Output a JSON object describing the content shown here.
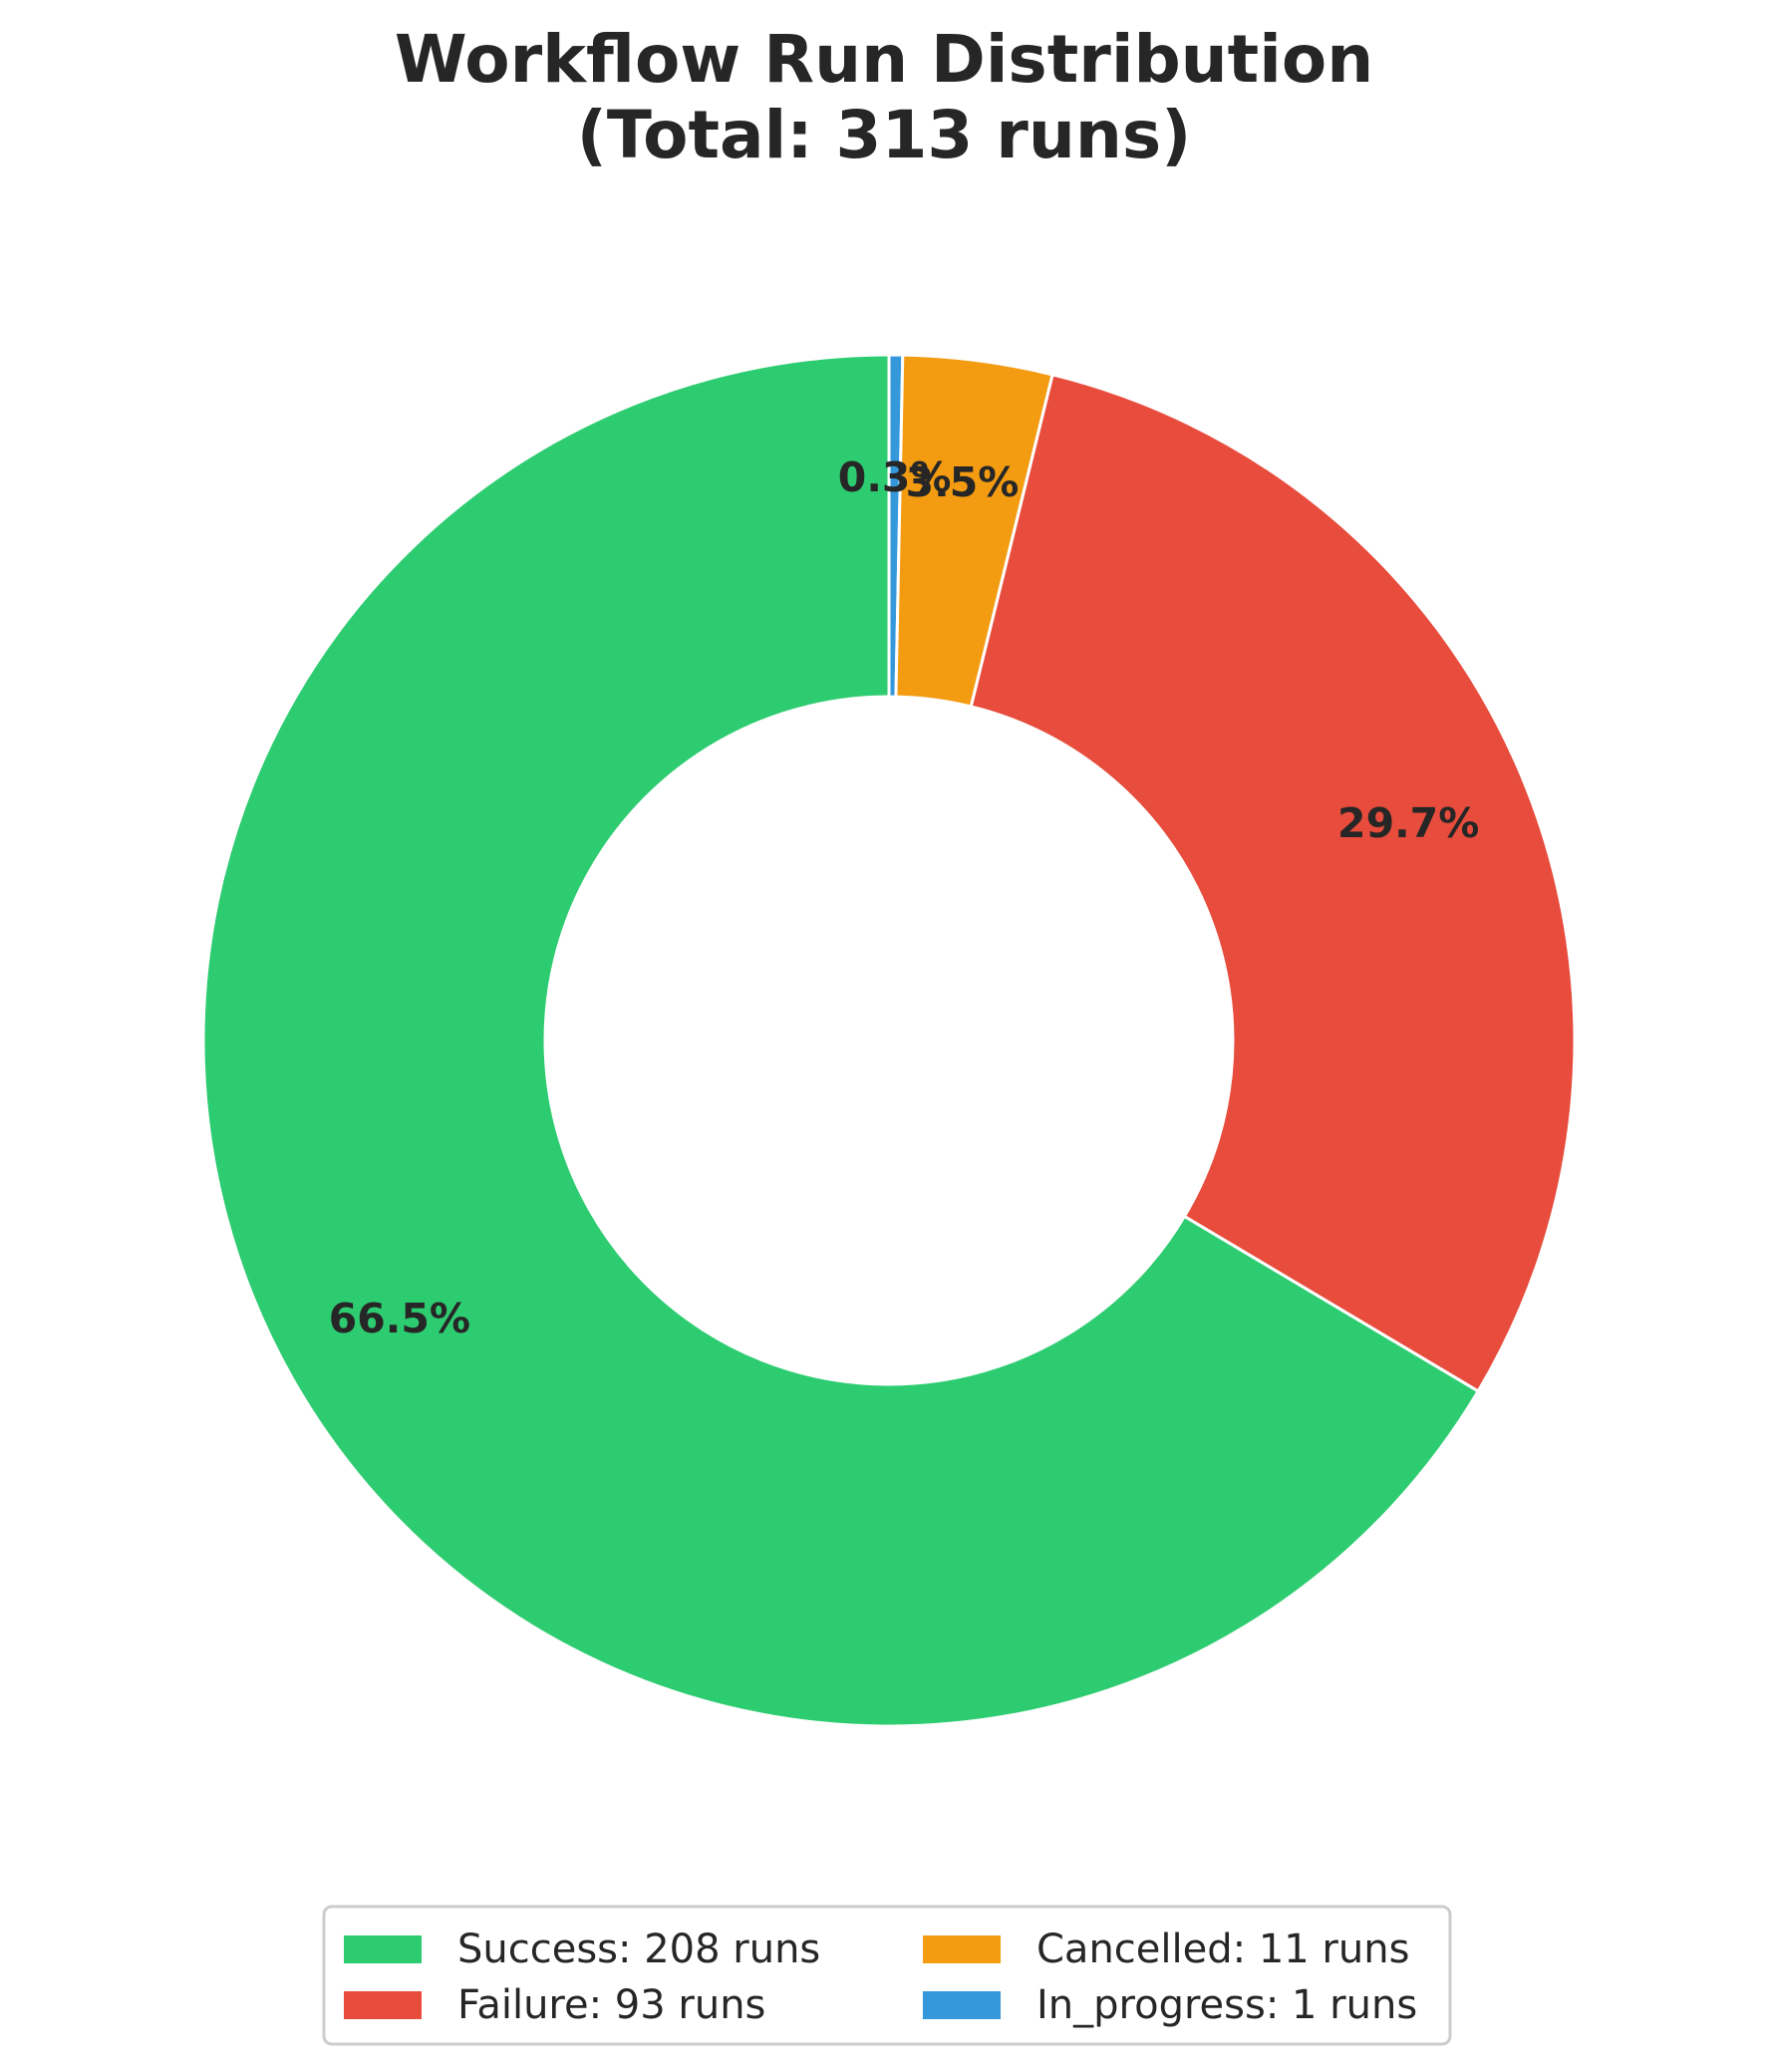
{
  "chart_data": {
    "type": "pie",
    "donut": true,
    "title_lines": [
      "Workflow Run Distribution",
      "(Total: 313 runs)"
    ],
    "start_angle_deg": 90,
    "direction": "clockwise",
    "slices": [
      {
        "name": "In_progress",
        "value": 1,
        "pct_label": "0.3%",
        "legend_label": "In_progress: 1 runs",
        "color": "#3498db"
      },
      {
        "name": "Cancelled",
        "value": 11,
        "pct_label": "3.5%",
        "legend_label": "Cancelled: 11 runs",
        "color": "#f39c12"
      },
      {
        "name": "Failure",
        "value": 93,
        "pct_label": "29.7%",
        "legend_label": "Failure: 93 runs",
        "color": "#e74c3c"
      },
      {
        "name": "Success",
        "value": 208,
        "pct_label": "66.5%",
        "legend_label": "Success: 208 runs",
        "color": "#2ecc71"
      }
    ],
    "legend_order": [
      "Success",
      "Failure",
      "Cancelled",
      "In_progress"
    ],
    "legend_placement": "bottom-center",
    "legend_columns": 2
  }
}
